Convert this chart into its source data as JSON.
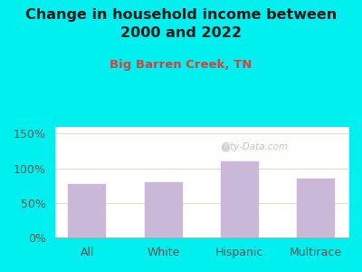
{
  "title": "Change in household income between\n2000 and 2022",
  "subtitle": "Big Barren Creek, TN",
  "categories": [
    "All",
    "White",
    "Hispanic",
    "Multirace"
  ],
  "values": [
    78,
    80,
    110,
    85
  ],
  "bar_color": "#c9b8d8",
  "bar_edge_color": "#c9b8d8",
  "title_fontsize": 11.5,
  "subtitle_fontsize": 9.5,
  "subtitle_color": "#cc4444",
  "bg_color": "#00f0f0",
  "ylim": [
    0,
    160
  ],
  "yticks": [
    0,
    50,
    100,
    150
  ],
  "watermark": "City-Data.com",
  "tick_label_fontsize": 9,
  "xlabel_fontsize": 9,
  "grid_color": "#ddeecc",
  "axis_tick_color": "#555555"
}
